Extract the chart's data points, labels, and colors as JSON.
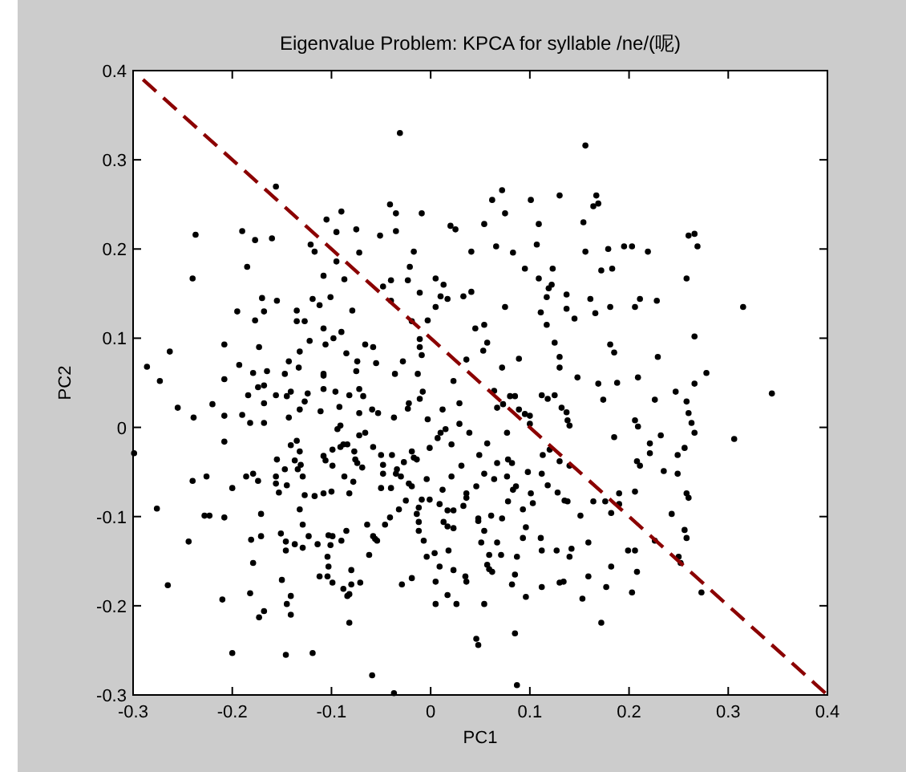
{
  "chart_data": {
    "type": "scatter",
    "title": "Eigenvalue Problem: KPCA for syllable /ne/(呢)",
    "xlabel": "PC1",
    "ylabel": "PC2",
    "xlim": [
      -0.3,
      0.4
    ],
    "ylim": [
      -0.3,
      0.4
    ],
    "xticks": [
      -0.3,
      -0.2,
      -0.1,
      0,
      0.1,
      0.2,
      0.3,
      0.4
    ],
    "yticks": [
      -0.3,
      -0.2,
      -0.1,
      0,
      0.1,
      0.2,
      0.3,
      0.4
    ],
    "marker": "circle",
    "series": [
      {
        "type": "scatter",
        "color": "#000000",
        "x": [
          -0.031,
          0.156,
          -0.156,
          -0.237,
          -0.24,
          -0.19,
          -0.177,
          -0.16,
          -0.185,
          -0.195,
          -0.17,
          -0.177,
          -0.168,
          -0.155,
          -0.208,
          -0.173,
          -0.286,
          -0.263,
          -0.105,
          -0.09,
          -0.095,
          -0.075,
          -0.121,
          -0.117,
          -0.072,
          -0.095,
          -0.108,
          -0.087,
          -0.101,
          -0.119,
          -0.112,
          -0.135,
          -0.127,
          -0.135,
          -0.079,
          -0.108,
          -0.09,
          -0.122,
          -0.098,
          -0.106,
          -0.066,
          -0.058,
          -0.132,
          -0.085,
          -0.143,
          -0.074,
          -0.193,
          -0.179,
          -0.165,
          -0.147,
          -0.133,
          -0.108,
          -0.075,
          -0.055,
          -0.041,
          -0.035,
          -0.035,
          -0.051,
          -0.009,
          -0.017,
          -0.021,
          -0.023,
          -0.04,
          -0.048,
          -0.011,
          -0.04,
          0.005,
          0.013,
          0.01,
          0.017,
          0.033,
          0.041,
          0.02,
          0.025,
          0.005,
          -0.003,
          -0.019,
          -0.011,
          -0.011,
          -0.009,
          -0.028,
          -0.036,
          -0.013,
          0.036,
          0.045,
          0.072,
          0.062,
          0.075,
          0.101,
          0.13,
          0.167,
          0.164,
          0.169,
          0.054,
          0.109,
          0.154,
          0.066,
          0.083,
          0.107,
          0.156,
          0.179,
          0.195,
          0.203,
          0.219,
          0.26,
          0.266,
          0.269,
          0.095,
          0.123,
          0.172,
          0.183,
          0.109,
          0.122,
          0.119,
          0.117,
          0.137,
          0.161,
          0.211,
          0.228,
          0.258,
          0.041,
          0.075,
          0.111,
          0.137,
          0.166,
          0.181,
          0.206,
          0.145,
          0.315,
          0.054,
          0.117,
          0.057,
          0.053,
          0.125,
          0.181,
          0.185,
          0.266,
          0.089,
          0.13,
          0.229,
          0.072,
          0.13,
          0.148,
          0.209,
          0.278,
          0.169,
          0.188,
          0.266,
          -0.273,
          -0.255,
          -0.239,
          -0.22,
          -0.208,
          -0.208,
          -0.208,
          -0.19,
          -0.182,
          -0.184,
          -0.174,
          -0.168,
          -0.168,
          -0.168,
          -0.156,
          -0.143,
          -0.145,
          -0.141,
          -0.132,
          -0.127,
          -0.124,
          -0.111,
          -0.108,
          -0.108,
          -0.096,
          -0.092,
          -0.082,
          -0.072,
          -0.068,
          -0.072,
          -0.059,
          -0.053,
          -0.037,
          -0.022,
          -0.011,
          -0.023,
          -0.008,
          -0.003,
          0.012,
          0.029,
          0.023,
          -0.299,
          -0.276,
          -0.265,
          -0.244,
          -0.24,
          -0.226,
          -0.228,
          -0.223,
          -0.208,
          -0.2,
          -0.21,
          -0.2,
          -0.186,
          -0.179,
          -0.174,
          -0.171,
          -0.181,
          -0.171,
          -0.179,
          -0.182,
          -0.173,
          -0.168,
          -0.156,
          -0.156,
          -0.153,
          -0.147,
          -0.145,
          -0.155,
          -0.141,
          -0.135,
          -0.132,
          -0.137,
          -0.134,
          -0.129,
          -0.131,
          -0.151,
          -0.146,
          -0.146,
          -0.137,
          -0.129,
          -0.132,
          -0.129,
          -0.123,
          -0.127,
          -0.117,
          -0.114,
          -0.108,
          -0.1,
          -0.108,
          -0.106,
          -0.099,
          -0.099,
          -0.094,
          -0.091,
          -0.088,
          -0.084,
          -0.091,
          -0.087,
          -0.082,
          -0.078,
          -0.074,
          -0.069,
          -0.076,
          -0.072,
          -0.066,
          -0.077,
          -0.058,
          -0.05,
          -0.048,
          -0.039,
          -0.048,
          -0.05,
          -0.04,
          -0.034,
          -0.027,
          -0.03,
          -0.035,
          -0.019,
          -0.017,
          -0.014,
          -0.001,
          0.007,
          0.01,
          0.015,
          0.021,
          0.029,
          0.039,
          0.049,
          -0.022,
          -0.019,
          -0.004,
          0.012,
          0.021,
          0.031,
          -0.025,
          -0.009,
          -0.001,
          -0.012,
          0.009,
          0.017,
          0.023,
          0.036,
          0.036,
          0.033,
          0.046,
          0.048,
          0.013,
          0.017,
          0.023,
          -0.012,
          -0.012,
          -0.007,
          -0.014,
          -0.032,
          -0.041,
          -0.046,
          -0.058,
          -0.056,
          -0.054,
          -0.064,
          -0.062,
          -0.085,
          -0.09,
          -0.099,
          -0.103,
          -0.101,
          -0.104,
          -0.103,
          -0.104,
          -0.112,
          -0.08,
          -0.08,
          -0.088,
          -0.084,
          -0.082,
          -0.071,
          -0.082,
          -0.029,
          -0.019,
          -0.004,
          0.004,
          0.009,
          0.018,
          0.023,
          0.005,
          0.005,
          0.017,
          0.026,
          0.035,
          0.036,
          -0.146,
          -0.119,
          -0.059,
          -0.037,
          0.046,
          0.048,
          -0.15,
          -0.141,
          -0.145,
          -0.141,
          -0.099,
          0.064,
          0.067,
          0.073,
          0.08,
          0.085,
          0.089,
          0.095,
          0.1,
          0.1,
          0.077,
          0.057,
          0.054,
          0.064,
          0.067,
          0.078,
          0.082,
          0.077,
          0.083,
          0.086,
          0.098,
          0.101,
          0.112,
          0.113,
          0.12,
          0.118,
          0.13,
          0.14,
          0.135,
          0.138,
          0.128,
          0.112,
          0.118,
          0.125,
          0.132,
          0.137,
          0.138,
          0.14,
          0.174,
          0.185,
          0.226,
          0.247,
          0.258,
          0.26,
          0.263,
          0.266,
          0.256,
          0.249,
          0.235,
          0.249,
          0.232,
          0.221,
          0.221,
          0.206,
          0.209,
          0.208,
          0.211,
          0.206,
          0.19,
          0.19,
          0.176,
          0.182,
          0.164,
          0.151,
          0.258,
          0.26,
          0.243,
          0.344,
          0.306,
          0.256,
          0.258,
          0.226,
          0.25,
          0.252,
          0.273,
          0.199,
          0.206,
          0.208,
          0.203,
          0.159,
          0.142,
          0.14,
          0.159,
          0.182,
          0.177,
          0.153,
          0.172,
          0.13,
          0.134,
          0.112,
          0.127,
          0.112,
          0.111,
          0.096,
          0.093,
          0.087,
          0.085,
          0.082,
          0.096,
          0.085,
          0.087,
          0.067,
          0.071,
          0.059,
          0.057,
          0.059,
          0.062,
          0.054,
          0.051,
          0.048,
          0.061,
          0.072,
          0.078,
          0.093,
          0.103,
          0.054
        ],
        "values": [
          0.33,
          0.316,
          0.27,
          0.216,
          0.167,
          0.22,
          0.21,
          0.212,
          0.18,
          0.13,
          0.145,
          0.12,
          0.13,
          0.142,
          0.093,
          0.09,
          0.068,
          0.085,
          0.233,
          0.242,
          0.219,
          0.222,
          0.205,
          0.197,
          0.196,
          0.186,
          0.17,
          0.166,
          0.146,
          0.144,
          0.137,
          0.131,
          0.119,
          0.119,
          0.131,
          0.111,
          0.107,
          0.097,
          0.1,
          0.093,
          0.093,
          0.09,
          0.085,
          0.083,
          0.074,
          0.074,
          0.07,
          0.061,
          0.063,
          0.06,
          0.067,
          0.06,
          0.063,
          0.072,
          0.25,
          0.24,
          0.22,
          0.215,
          0.24,
          0.197,
          0.18,
          0.165,
          0.165,
          0.158,
          0.151,
          0.142,
          0.167,
          0.16,
          0.147,
          0.144,
          0.147,
          0.197,
          0.226,
          0.222,
          0.135,
          0.12,
          0.119,
          0.099,
          0.09,
          0.081,
          0.074,
          0.06,
          0.06,
          0.076,
          0.111,
          0.266,
          0.255,
          0.24,
          0.255,
          0.26,
          0.26,
          0.248,
          0.251,
          0.228,
          0.228,
          0.23,
          0.203,
          0.196,
          0.205,
          0.197,
          0.2,
          0.203,
          0.203,
          0.197,
          0.215,
          0.217,
          0.203,
          0.178,
          0.178,
          0.176,
          0.178,
          0.167,
          0.16,
          0.156,
          0.146,
          0.149,
          0.144,
          0.144,
          0.142,
          0.167,
          0.152,
          0.135,
          0.129,
          0.133,
          0.128,
          0.135,
          0.135,
          0.122,
          0.135,
          0.115,
          0.115,
          0.095,
          0.086,
          0.095,
          0.093,
          0.084,
          0.102,
          0.077,
          0.079,
          0.079,
          0.067,
          0.067,
          0.056,
          0.056,
          0.061,
          0.049,
          0.05,
          0.049,
          0.052,
          0.022,
          0.011,
          0.026,
          0.054,
          0.013,
          -0.016,
          0.014,
          0.005,
          0.036,
          0.045,
          0.047,
          0.027,
          0.005,
          0.036,
          0.011,
          0.035,
          0.04,
          0.02,
          0.029,
          0.038,
          0.018,
          0.058,
          0.043,
          0.04,
          0.023,
          0.036,
          0.043,
          0.035,
          0.016,
          0.02,
          0.016,
          0.011,
          0.027,
          0.032,
          0.021,
          0.04,
          0.009,
          0.02,
          0.027,
          0.052,
          -0.029,
          -0.091,
          -0.177,
          -0.128,
          -0.06,
          -0.055,
          -0.099,
          -0.099,
          -0.101,
          -0.068,
          -0.193,
          -0.253,
          -0.055,
          -0.052,
          -0.06,
          -0.097,
          -0.126,
          -0.122,
          -0.152,
          -0.186,
          -0.213,
          -0.206,
          -0.055,
          -0.063,
          -0.073,
          -0.047,
          -0.065,
          -0.036,
          -0.02,
          -0.015,
          -0.027,
          -0.037,
          -0.047,
          -0.055,
          -0.042,
          -0.119,
          -0.128,
          -0.138,
          -0.131,
          -0.135,
          -0.092,
          -0.109,
          -0.122,
          -0.076,
          -0.077,
          -0.131,
          -0.074,
          -0.072,
          -0.032,
          -0.037,
          -0.043,
          -0.025,
          -0.002,
          0.002,
          -0.019,
          -0.019,
          -0.022,
          -0.055,
          -0.074,
          -0.061,
          -0.04,
          -0.045,
          -0.036,
          -0.009,
          -0.006,
          -0.027,
          -0.022,
          -0.031,
          -0.042,
          -0.031,
          -0.052,
          -0.068,
          -0.068,
          -0.047,
          -0.039,
          -0.055,
          -0.052,
          -0.027,
          -0.034,
          -0.036,
          -0.023,
          -0.012,
          -0.006,
          -0.002,
          -0.019,
          0.004,
          -0.006,
          -0.031,
          -0.063,
          -0.066,
          -0.058,
          -0.07,
          -0.055,
          -0.043,
          -0.082,
          -0.081,
          -0.081,
          -0.09,
          -0.086,
          -0.093,
          -0.093,
          -0.074,
          -0.079,
          -0.088,
          -0.066,
          -0.102,
          -0.106,
          -0.111,
          -0.113,
          -0.106,
          -0.116,
          -0.127,
          -0.097,
          -0.092,
          -0.101,
          -0.109,
          -0.122,
          -0.125,
          -0.127,
          -0.109,
          -0.143,
          -0.116,
          -0.127,
          -0.122,
          -0.121,
          -0.132,
          -0.145,
          -0.156,
          -0.167,
          -0.167,
          -0.16,
          -0.176,
          -0.181,
          -0.189,
          -0.187,
          -0.174,
          -0.219,
          -0.176,
          -0.169,
          -0.145,
          -0.141,
          -0.156,
          -0.138,
          -0.16,
          -0.173,
          -0.198,
          -0.188,
          -0.198,
          -0.167,
          -0.173,
          -0.255,
          -0.253,
          -0.278,
          -0.298,
          -0.237,
          -0.244,
          -0.171,
          -0.189,
          -0.198,
          -0.21,
          -0.174,
          0.041,
          0.022,
          0.026,
          0.035,
          0.035,
          0.02,
          0.015,
          0.013,
          0.004,
          -0.006,
          -0.018,
          -0.052,
          -0.058,
          -0.04,
          -0.036,
          -0.04,
          -0.055,
          -0.07,
          -0.066,
          -0.05,
          -0.074,
          -0.052,
          -0.031,
          -0.025,
          -0.065,
          -0.038,
          -0.043,
          -0.082,
          -0.083,
          -0.073,
          0.036,
          0.032,
          0.036,
          0.022,
          0.017,
          0.008,
          0.002,
          0.031,
          -0.011,
          0.031,
          0.04,
          0.029,
          0.016,
          0.005,
          -0.006,
          -0.023,
          -0.031,
          -0.049,
          -0.052,
          -0.009,
          -0.018,
          -0.029,
          0.008,
          0.001,
          -0.038,
          -0.043,
          -0.072,
          -0.074,
          -0.086,
          -0.083,
          -0.096,
          -0.083,
          -0.099,
          -0.074,
          -0.079,
          -0.097,
          0.038,
          -0.013,
          -0.115,
          -0.124,
          -0.127,
          -0.145,
          -0.152,
          -0.185,
          -0.138,
          -0.138,
          -0.162,
          -0.185,
          -0.129,
          -0.136,
          -0.145,
          -0.167,
          -0.156,
          -0.179,
          -0.192,
          -0.219,
          -0.174,
          -0.173,
          -0.179,
          -0.138,
          -0.138,
          -0.124,
          -0.112,
          -0.124,
          -0.145,
          -0.165,
          -0.176,
          -0.19,
          -0.231,
          -0.289,
          -0.129,
          -0.143,
          -0.143,
          -0.154,
          -0.159,
          -0.162,
          -0.116,
          -0.129,
          -0.105,
          -0.099,
          -0.102,
          -0.083,
          -0.092,
          -0.085,
          -0.198
        ]
      },
      {
        "type": "line",
        "color": "#8b0000",
        "line_style": "dashed",
        "marker": "none",
        "x": [
          -0.29,
          0.4
        ],
        "values": [
          0.39,
          -0.3
        ]
      }
    ]
  }
}
